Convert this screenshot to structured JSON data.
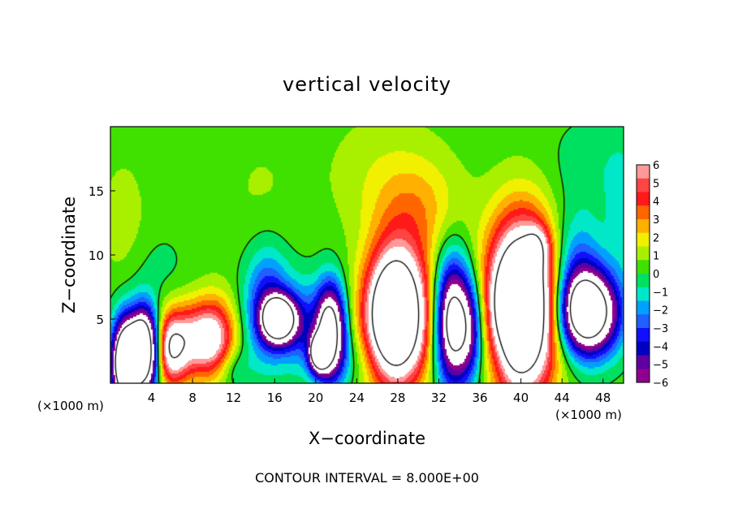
{
  "chart_data": {
    "type": "heatmap",
    "title": "vertical velocity",
    "xlabel": "X−coordinate",
    "ylabel": "Z−coordinate",
    "x_unit_left": "(×1000 m)",
    "x_unit_right": "(×1000 m)",
    "footer": "CONTOUR INTERVAL = 8.000E+00",
    "xlim": [
      0,
      50
    ],
    "ylim": [
      0,
      20
    ],
    "x_ticks": [
      4,
      8,
      12,
      16,
      20,
      24,
      28,
      32,
      36,
      40,
      44,
      48
    ],
    "y_ticks": [
      5,
      10,
      15
    ],
    "x_tick_labels": [
      "4",
      "8",
      "12",
      "16",
      "20",
      "24",
      "28",
      "32",
      "36",
      "40",
      "44",
      "48"
    ],
    "y_tick_labels": [
      "5",
      "10",
      "15"
    ],
    "colorbar": {
      "range": [
        -6,
        6
      ],
      "tick_labels": [
        "6",
        "5",
        "4",
        "3",
        "2",
        "1",
        "0",
        "−1",
        "−2",
        "−3",
        "−4",
        "−5",
        "−6"
      ],
      "colors": [
        "#ff9999",
        "#ff4444",
        "#ff1a1a",
        "#ff6600",
        "#ffb000",
        "#f0f000",
        "#a8f000",
        "#40e000",
        "#00e060",
        "#00e8c8",
        "#00a0ff",
        "#2060ff",
        "#1010ff",
        "#0000c0",
        "#6000a0",
        "#900090"
      ]
    },
    "cells": [
      {
        "x": 1.3,
        "z": 1.6,
        "w": -12,
        "sx": 0.9,
        "sz": 2.4
      },
      {
        "x": 3.2,
        "z": 2.6,
        "w": -14,
        "sx": 1.0,
        "sz": 2.2
      },
      {
        "x": 1.2,
        "z": 12.5,
        "w": 0.8,
        "sx": 1.8,
        "sz": 4.0
      },
      {
        "x": 5.8,
        "z": 2.7,
        "w": 7,
        "sx": 1.2,
        "sz": 2.0
      },
      {
        "x": 8.3,
        "z": 3.5,
        "w": 5,
        "sx": 1.6,
        "sz": 2.0
      },
      {
        "x": 10.3,
        "z": 3.6,
        "w": 4.5,
        "sx": 1.4,
        "sz": 2.2
      },
      {
        "x": 4.5,
        "z": 9.0,
        "w": -0.6,
        "sx": 2.0,
        "sz": 2.0
      },
      {
        "x": 15.2,
        "z": 6.0,
        "w": -4.5,
        "sx": 1.5,
        "sz": 3.0
      },
      {
        "x": 16.4,
        "z": 5.0,
        "w": -11,
        "sx": 1.1,
        "sz": 1.2
      },
      {
        "x": 21.4,
        "z": 4.2,
        "w": -10,
        "sx": 1.0,
        "sz": 2.5
      },
      {
        "x": 20.3,
        "z": 2.3,
        "w": -9,
        "sx": 0.7,
        "sz": 1.0
      },
      {
        "x": 18.6,
        "z": 4.6,
        "w": -3.2,
        "sx": 1.6,
        "sz": 2.4
      },
      {
        "x": 27.8,
        "z": 5.3,
        "w": 14,
        "sx": 2.1,
        "sz": 3.6
      },
      {
        "x": 33.2,
        "z": 4.8,
        "w": -9.5,
        "sx": 1.2,
        "sz": 3.4
      },
      {
        "x": 35.0,
        "z": 4.2,
        "w": -5,
        "sx": 1.0,
        "sz": 2.8
      },
      {
        "x": 40.0,
        "z": 6.0,
        "w": 15,
        "sx": 2.3,
        "sz": 4.5
      },
      {
        "x": 41.6,
        "z": 10.6,
        "w": 3,
        "sx": 0.8,
        "sz": 1.2
      },
      {
        "x": 46.5,
        "z": 5.5,
        "w": -12,
        "sx": 2.0,
        "sz": 2.2
      },
      {
        "x": 45.3,
        "z": 9.0,
        "w": -3,
        "sx": 1.8,
        "sz": 3.0
      },
      {
        "x": 29.8,
        "z": 13.5,
        "w": 2.0,
        "sx": 3.0,
        "sz": 2.8
      },
      {
        "x": 26.5,
        "z": 16.5,
        "w": 0.9,
        "sx": 4.0,
        "sz": 3.5
      },
      {
        "x": 47.0,
        "z": 17.0,
        "w": -0.8,
        "sx": 3.0,
        "sz": 2.5
      },
      {
        "x": 14.5,
        "z": 15.0,
        "w": 0.5,
        "sx": 3.0,
        "sz": 4.0
      },
      {
        "x": 23.0,
        "z": 1.8,
        "w": -1.2,
        "sx": 2.0,
        "sz": 1.6
      },
      {
        "x": 37.5,
        "z": 2.0,
        "w": -1.0,
        "sx": 1.0,
        "sz": 2.0
      },
      {
        "x": 11.8,
        "z": 1.2,
        "w": -1.5,
        "sx": 1.2,
        "sz": 1.2
      },
      {
        "x": 49.8,
        "z": 13.0,
        "w": -1.2,
        "sx": 1.2,
        "sz": 4.0
      }
    ]
  }
}
